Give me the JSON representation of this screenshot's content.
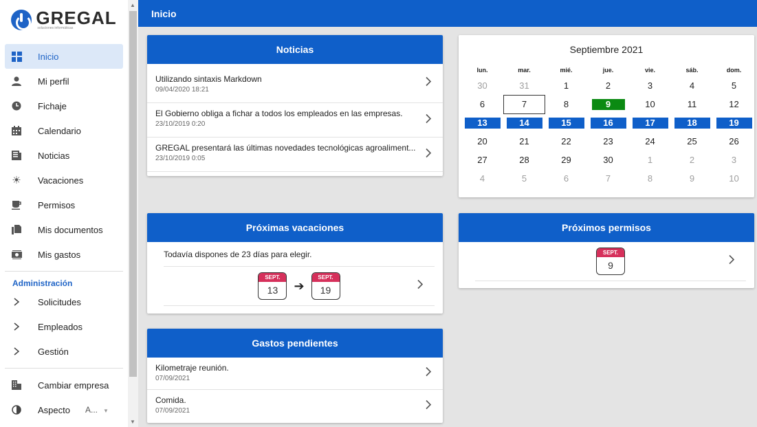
{
  "sidebar": {
    "logo": {
      "name": "GREGAL",
      "tagline": "soluciones informáticas"
    },
    "items": [
      {
        "label": "Inicio",
        "icon": "dashboard-icon"
      },
      {
        "label": "Mi perfil",
        "icon": "person-icon"
      },
      {
        "label": "Fichaje",
        "icon": "clock-icon"
      },
      {
        "label": "Calendario",
        "icon": "calendar-icon"
      },
      {
        "label": "Noticias",
        "icon": "news-icon"
      },
      {
        "label": "Vacaciones",
        "icon": "sun-icon"
      },
      {
        "label": "Permisos",
        "icon": "cup-icon"
      },
      {
        "label": "Mis documentos",
        "icon": "documents-icon"
      },
      {
        "label": "Mis gastos",
        "icon": "money-icon"
      }
    ],
    "admin_title": "Administración",
    "admin_items": [
      {
        "label": "Solicitudes"
      },
      {
        "label": "Empleados"
      },
      {
        "label": "Gestión"
      }
    ],
    "change_company": "Cambiar empresa",
    "aspect_label": "Aspecto",
    "aspect_value": "A..."
  },
  "topbar": {
    "title": "Inicio"
  },
  "news": {
    "title": "Noticias",
    "items": [
      {
        "title": "Utilizando sintaxis Markdown",
        "date": "09/04/2020 18:21"
      },
      {
        "title": "El Gobierno obliga a fichar a todos los empleados en las empresas.",
        "date": "23/10/2019 0:20"
      },
      {
        "title": "GREGAL presentará las últimas novedades tecnológicas agroaliment...",
        "date": "23/10/2019 0:05"
      }
    ]
  },
  "calendar": {
    "title": "Septiembre 2021",
    "weekdays": [
      "lun.",
      "mar.",
      "mié.",
      "jue.",
      "vie.",
      "sáb.",
      "dom."
    ],
    "days": [
      {
        "n": "30",
        "s": "mute"
      },
      {
        "n": "31",
        "s": "mute"
      },
      {
        "n": "1",
        "s": ""
      },
      {
        "n": "2",
        "s": ""
      },
      {
        "n": "3",
        "s": ""
      },
      {
        "n": "4",
        "s": ""
      },
      {
        "n": "5",
        "s": ""
      },
      {
        "n": "6",
        "s": ""
      },
      {
        "n": "7",
        "s": "today"
      },
      {
        "n": "8",
        "s": ""
      },
      {
        "n": "9",
        "s": "green"
      },
      {
        "n": "10",
        "s": ""
      },
      {
        "n": "11",
        "s": ""
      },
      {
        "n": "12",
        "s": ""
      },
      {
        "n": "13",
        "s": "blue"
      },
      {
        "n": "14",
        "s": "blue"
      },
      {
        "n": "15",
        "s": "blue"
      },
      {
        "n": "16",
        "s": "blue"
      },
      {
        "n": "17",
        "s": "blue"
      },
      {
        "n": "18",
        "s": "blue"
      },
      {
        "n": "19",
        "s": "blue"
      },
      {
        "n": "20",
        "s": ""
      },
      {
        "n": "21",
        "s": ""
      },
      {
        "n": "22",
        "s": ""
      },
      {
        "n": "23",
        "s": ""
      },
      {
        "n": "24",
        "s": ""
      },
      {
        "n": "25",
        "s": ""
      },
      {
        "n": "26",
        "s": ""
      },
      {
        "n": "27",
        "s": ""
      },
      {
        "n": "28",
        "s": ""
      },
      {
        "n": "29",
        "s": ""
      },
      {
        "n": "30",
        "s": ""
      },
      {
        "n": "1",
        "s": "mute"
      },
      {
        "n": "2",
        "s": "mute"
      },
      {
        "n": "3",
        "s": "mute"
      },
      {
        "n": "4",
        "s": "mute"
      },
      {
        "n": "5",
        "s": "mute"
      },
      {
        "n": "6",
        "s": "mute"
      },
      {
        "n": "7",
        "s": "mute"
      },
      {
        "n": "8",
        "s": "mute"
      },
      {
        "n": "9",
        "s": "mute"
      },
      {
        "n": "10",
        "s": "mute"
      }
    ]
  },
  "vacations": {
    "title": "Próximas vacaciones",
    "text": "Todavía dispones de 23 días para elegir.",
    "from_month": "SEPT.",
    "from_day": "13",
    "to_month": "SEPT.",
    "to_day": "19"
  },
  "permits": {
    "title": "Próximos permisos",
    "month": "SEPT.",
    "day": "9"
  },
  "expenses": {
    "title": "Gastos pendientes",
    "items": [
      {
        "title": "Kilometraje reunión.",
        "date": "07/09/2021"
      },
      {
        "title": "Comida.",
        "date": "07/09/2021"
      }
    ]
  },
  "colors": {
    "primary": "#0f5fc9",
    "accent": "#d6305b",
    "today_highlight": "#0b8a12"
  }
}
